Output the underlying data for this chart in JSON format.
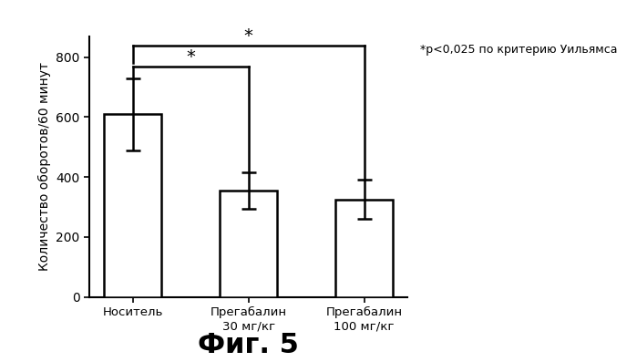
{
  "categories": [
    "Носитель",
    "Прегабалин\n30 мг/кг",
    "Прегабалин\n100 мг/кг"
  ],
  "values": [
    610,
    355,
    325
  ],
  "errors": [
    120,
    60,
    65
  ],
  "bar_color": "#ffffff",
  "bar_edgecolor": "#000000",
  "ylabel": "Количество оборотов/60 минут",
  "ylim": [
    0,
    870
  ],
  "yticks": [
    0,
    200,
    400,
    600,
    800
  ],
  "annotation_text": "*p<0,025 по критерию Уильямса",
  "figure_title": "Фиг. 5",
  "background_color": "#ffffff",
  "bar_width": 0.5
}
